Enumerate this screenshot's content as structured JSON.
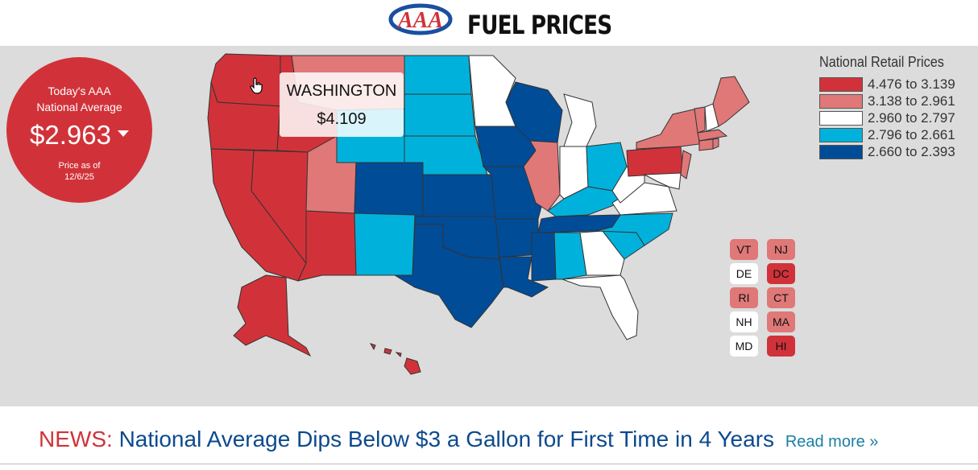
{
  "header": {
    "logo_text": "AAA",
    "title": "FUEL PRICES"
  },
  "national_average": {
    "line1": "Today's AAA",
    "line2": "National Average",
    "price": "$2.963",
    "asof_line1": "Price as of",
    "asof_line2": "12/6/25"
  },
  "tooltip": {
    "state": "WASHINGTON",
    "price": "$4.109"
  },
  "legend": {
    "title": "National Retail Prices",
    "ranges": [
      {
        "label": "4.476 to 3.139",
        "color": "#d13239"
      },
      {
        "label": "3.138 to 2.961",
        "color": "#e07878"
      },
      {
        "label": "2.960 to 2.797",
        "color": "#ffffff"
      },
      {
        "label": "2.796 to 2.661",
        "color": "#00b2db"
      },
      {
        "label": "2.660 to 2.393",
        "color": "#004c97"
      }
    ]
  },
  "small_states": [
    {
      "abbr": "VT",
      "color": "#e07878"
    },
    {
      "abbr": "NJ",
      "color": "#e07878"
    },
    {
      "abbr": "DE",
      "color": "#ffffff"
    },
    {
      "abbr": "DC",
      "color": "#d13239"
    },
    {
      "abbr": "RI",
      "color": "#e07878"
    },
    {
      "abbr": "CT",
      "color": "#e07878"
    },
    {
      "abbr": "NH",
      "color": "#ffffff"
    },
    {
      "abbr": "MA",
      "color": "#e07878"
    },
    {
      "abbr": "MD",
      "color": "#ffffff"
    },
    {
      "abbr": "HI",
      "color": "#d13239"
    }
  ],
  "news": {
    "prefix": "NEWS:",
    "headline": "National Average Dips Below $3 a Gallon for First Time in 4 Years",
    "read_more": "Read more »"
  }
}
